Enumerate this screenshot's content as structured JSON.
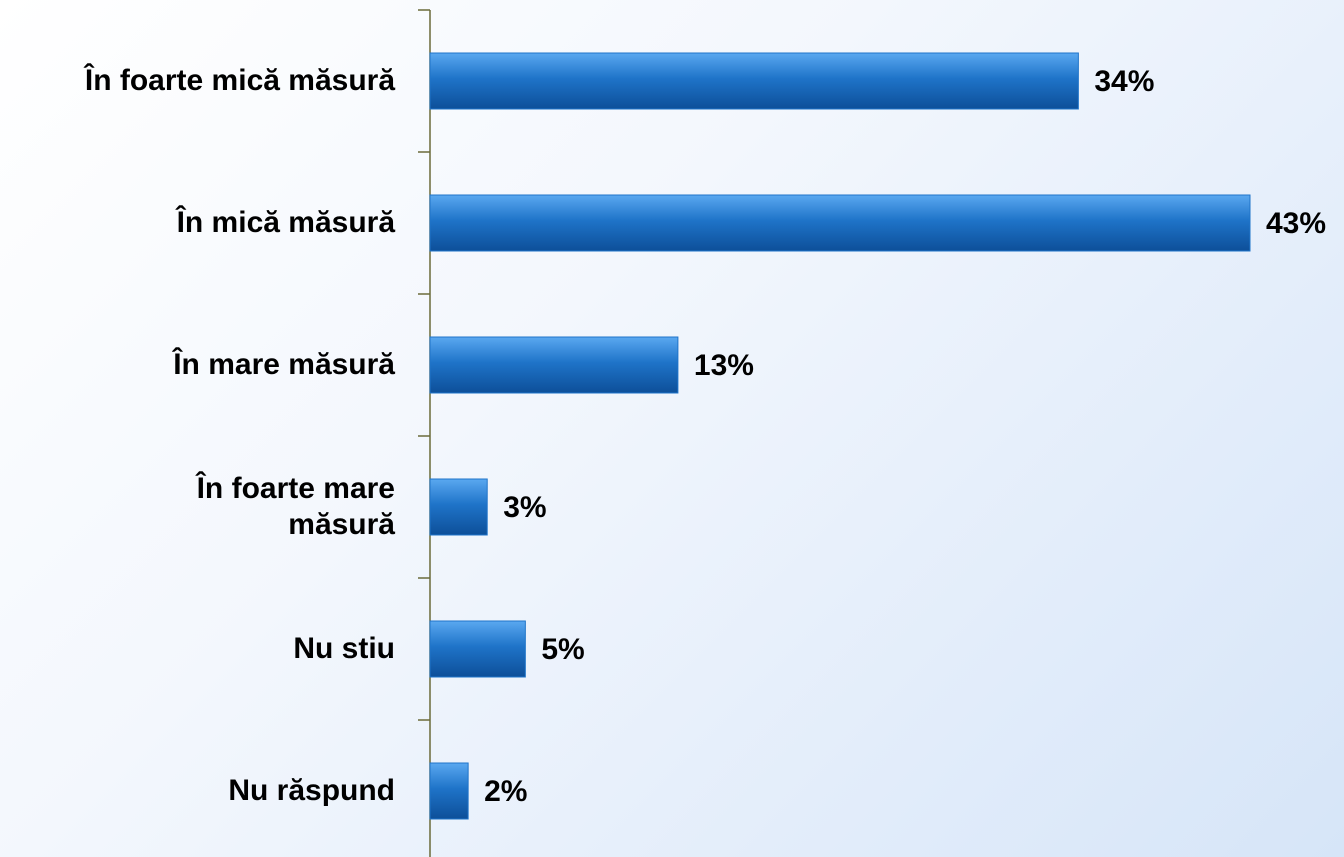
{
  "chart_data": {
    "type": "bar",
    "orientation": "horizontal",
    "categories": [
      "În foarte mică măsură",
      "În mică măsură",
      "În mare măsură",
      "În foarte mare\nmăsură",
      "Nu stiu",
      "Nu răspund"
    ],
    "values": [
      34,
      43,
      13,
      3,
      5,
      2
    ],
    "value_labels": [
      "34%",
      "43%",
      "13%",
      "3%",
      "5%",
      "2%"
    ],
    "color": "#1f74c9"
  }
}
